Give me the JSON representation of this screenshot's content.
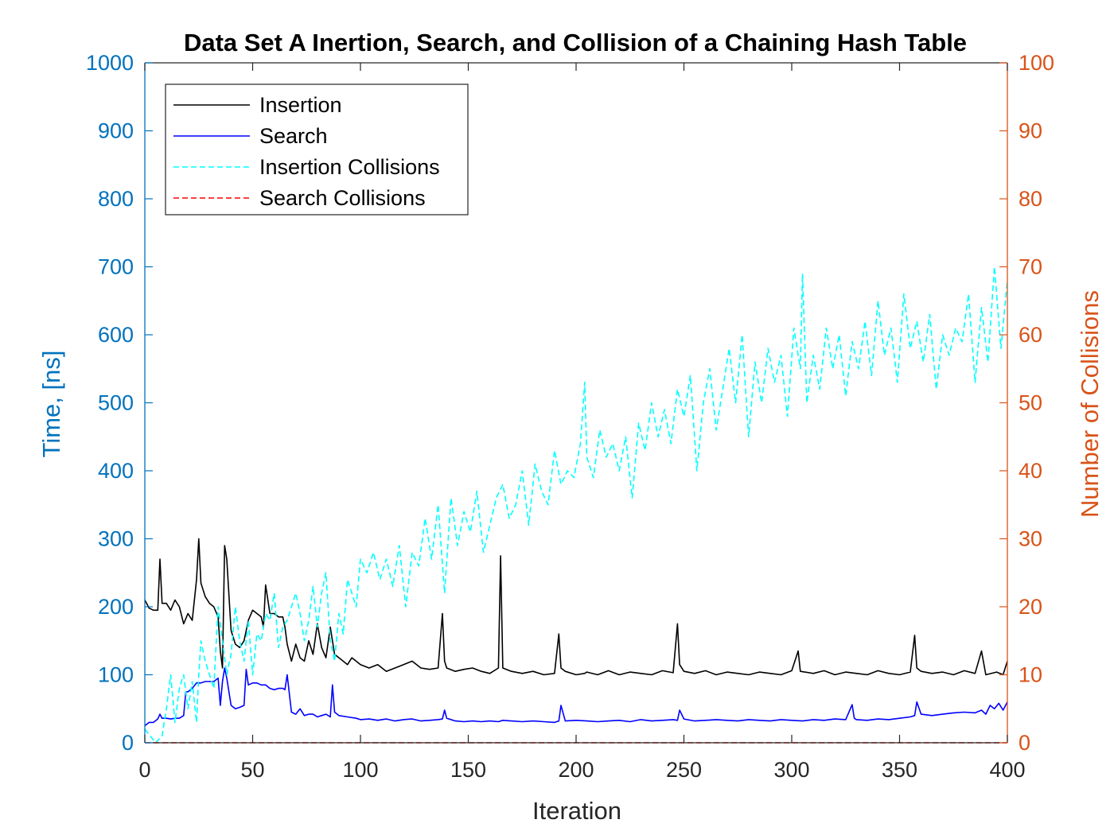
{
  "chart_data": {
    "type": "line",
    "title": "Data Set A Inertion, Search, and Collision of a Chaining Hash Table",
    "xlabel": "Iteration",
    "ylabel_left": "Time, [ns]",
    "ylabel_right": "Number of Collisions",
    "xlim": [
      0,
      400
    ],
    "ylim_left": [
      0,
      1000
    ],
    "ylim_right": [
      0,
      100
    ],
    "x_ticks": [
      0,
      50,
      100,
      150,
      200,
      250,
      300,
      350,
      400
    ],
    "y_left_ticks": [
      0,
      100,
      200,
      300,
      400,
      500,
      600,
      700,
      800,
      900,
      1000
    ],
    "y_right_ticks": [
      0,
      10,
      20,
      30,
      40,
      50,
      60,
      70,
      80,
      90,
      100
    ],
    "grid": false,
    "legend_position": "top-left",
    "colors": {
      "left_axis": "#0072BD",
      "right_axis": "#D95319",
      "axes_text": "#262626"
    },
    "series": [
      {
        "name": "Insertion",
        "axis": "left",
        "color": "#000000",
        "dash": "solid",
        "x": [
          0,
          2,
          4,
          6,
          7,
          8,
          10,
          12,
          14,
          16,
          18,
          20,
          22,
          24,
          25,
          26,
          28,
          30,
          32,
          34,
          35,
          36,
          37,
          38,
          40,
          42,
          44,
          46,
          48,
          50,
          52,
          54,
          55,
          56,
          58,
          60,
          62,
          64,
          65,
          66,
          68,
          70,
          72,
          74,
          76,
          78,
          80,
          82,
          84,
          86,
          88,
          90,
          92,
          94,
          96,
          98,
          100,
          104,
          108,
          112,
          116,
          120,
          124,
          128,
          132,
          136,
          138,
          139,
          140,
          144,
          148,
          152,
          156,
          160,
          164,
          165,
          166,
          170,
          175,
          180,
          185,
          190,
          192,
          193,
          195,
          200,
          204,
          205,
          210,
          215,
          220,
          225,
          230,
          235,
          240,
          245,
          247,
          248,
          250,
          255,
          260,
          265,
          270,
          275,
          280,
          285,
          290,
          295,
          300,
          303,
          304,
          310,
          315,
          320,
          325,
          330,
          335,
          340,
          345,
          350,
          355,
          357,
          358,
          360,
          365,
          370,
          375,
          380,
          385,
          388,
          390,
          395,
          398,
          400
        ],
        "values": [
          210,
          198,
          195,
          195,
          270,
          205,
          205,
          195,
          210,
          200,
          175,
          190,
          180,
          240,
          300,
          235,
          215,
          205,
          200,
          185,
          135,
          110,
          290,
          270,
          165,
          145,
          140,
          150,
          180,
          195,
          190,
          185,
          170,
          232,
          190,
          190,
          185,
          185,
          170,
          145,
          120,
          145,
          125,
          120,
          150,
          130,
          175,
          140,
          125,
          170,
          130,
          125,
          120,
          115,
          125,
          120,
          115,
          110,
          115,
          105,
          110,
          115,
          120,
          110,
          108,
          110,
          190,
          120,
          110,
          105,
          108,
          110,
          105,
          102,
          110,
          275,
          110,
          105,
          102,
          105,
          100,
          102,
          160,
          110,
          105,
          100,
          102,
          104,
          100,
          106,
          100,
          104,
          102,
          100,
          106,
          103,
          175,
          115,
          105,
          102,
          106,
          100,
          104,
          102,
          100,
          104,
          102,
          100,
          106,
          135,
          105,
          102,
          106,
          100,
          104,
          102,
          100,
          106,
          102,
          100,
          104,
          158,
          110,
          105,
          102,
          104,
          100,
          106,
          102,
          135,
          100,
          104,
          100,
          120
        ]
      },
      {
        "name": "Search",
        "axis": "left",
        "color": "#0000FF",
        "dash": "solid",
        "x": [
          0,
          2,
          4,
          6,
          7,
          8,
          10,
          12,
          14,
          16,
          18,
          19,
          20,
          22,
          24,
          26,
          28,
          30,
          32,
          34,
          35,
          36,
          37,
          38,
          40,
          42,
          44,
          46,
          47,
          48,
          50,
          52,
          54,
          56,
          58,
          60,
          62,
          64,
          65,
          66,
          68,
          70,
          72,
          74,
          76,
          78,
          80,
          82,
          84,
          86,
          87,
          88,
          90,
          94,
          98,
          100,
          104,
          108,
          112,
          116,
          120,
          124,
          128,
          132,
          136,
          138,
          139,
          140,
          144,
          148,
          152,
          156,
          160,
          164,
          166,
          170,
          175,
          180,
          185,
          190,
          192,
          193,
          195,
          200,
          205,
          210,
          215,
          220,
          225,
          230,
          235,
          240,
          245,
          247,
          248,
          250,
          255,
          260,
          265,
          270,
          275,
          280,
          285,
          290,
          295,
          300,
          305,
          310,
          315,
          320,
          325,
          328,
          329,
          330,
          335,
          340,
          345,
          350,
          355,
          357,
          358,
          360,
          365,
          370,
          375,
          380,
          385,
          388,
          390,
          392,
          394,
          396,
          398,
          400
        ],
        "values": [
          25,
          30,
          30,
          35,
          42,
          36,
          36,
          35,
          36,
          36,
          40,
          75,
          75,
          80,
          88,
          88,
          90,
          90,
          90,
          95,
          55,
          90,
          110,
          95,
          55,
          50,
          52,
          55,
          108,
          85,
          88,
          88,
          85,
          85,
          80,
          78,
          80,
          80,
          78,
          100,
          45,
          42,
          50,
          40,
          42,
          42,
          38,
          40,
          42,
          38,
          85,
          45,
          40,
          38,
          36,
          34,
          35,
          33,
          35,
          32,
          34,
          35,
          32,
          33,
          34,
          35,
          48,
          36,
          32,
          31,
          32,
          31,
          32,
          31,
          33,
          32,
          31,
          32,
          31,
          30,
          32,
          55,
          32,
          33,
          32,
          31,
          32,
          33,
          31,
          34,
          32,
          33,
          34,
          33,
          48,
          35,
          32,
          33,
          34,
          33,
          32,
          34,
          33,
          32,
          34,
          33,
          32,
          34,
          33,
          35,
          34,
          56,
          36,
          34,
          33,
          35,
          34,
          36,
          38,
          40,
          60,
          42,
          40,
          42,
          44,
          45,
          44,
          48,
          42,
          55,
          50,
          58,
          48,
          60
        ]
      },
      {
        "name": "Insertion Collisions",
        "axis": "right",
        "color": "#00FFFF",
        "dash": "dashed",
        "x": [
          0,
          5,
          8,
          10,
          12,
          14,
          16,
          18,
          20,
          22,
          24,
          25,
          26,
          28,
          30,
          32,
          34,
          36,
          38,
          40,
          42,
          44,
          46,
          48,
          50,
          52,
          54,
          56,
          58,
          60,
          62,
          64,
          66,
          68,
          70,
          72,
          74,
          76,
          78,
          80,
          82,
          84,
          86,
          88,
          90,
          92,
          94,
          96,
          98,
          100,
          103,
          106,
          109,
          112,
          115,
          118,
          121,
          124,
          127,
          130,
          133,
          136,
          139,
          142,
          145,
          148,
          151,
          154,
          157,
          160,
          163,
          166,
          169,
          172,
          175,
          178,
          181,
          184,
          187,
          190,
          193,
          196,
          199,
          202,
          204,
          205,
          208,
          211,
          214,
          217,
          220,
          223,
          226,
          229,
          232,
          235,
          238,
          241,
          244,
          247,
          250,
          253,
          256,
          259,
          262,
          265,
          268,
          271,
          274,
          277,
          280,
          283,
          286,
          289,
          292,
          295,
          298,
          301,
          304,
          305,
          307,
          310,
          313,
          316,
          319,
          322,
          325,
          328,
          331,
          334,
          337,
          340,
          343,
          346,
          349,
          352,
          355,
          358,
          361,
          364,
          367,
          370,
          373,
          376,
          379,
          382,
          385,
          388,
          391,
          394,
          397,
          400
        ],
        "values": [
          2,
          0,
          1,
          5,
          10,
          3,
          8,
          10,
          5,
          9,
          3,
          10,
          15,
          12,
          10,
          8,
          20,
          15,
          10,
          13,
          20,
          15,
          12,
          18,
          10,
          16,
          15,
          19,
          18,
          22,
          14,
          17,
          18,
          20,
          22,
          19,
          15,
          18,
          23,
          17,
          22,
          25,
          15,
          12,
          19,
          16,
          24,
          22,
          20,
          27,
          25,
          28,
          24,
          27,
          23,
          29,
          20,
          28,
          26,
          33,
          27,
          35,
          22,
          36,
          29,
          34,
          31,
          37,
          28,
          32,
          36,
          38,
          33,
          35,
          40,
          32,
          41,
          37,
          35,
          43,
          38,
          40,
          39,
          44,
          53,
          42,
          39,
          46,
          42,
          44,
          40,
          45,
          36,
          47,
          43,
          50,
          45,
          49,
          44,
          52,
          48,
          54,
          40,
          50,
          55,
          46,
          52,
          58,
          50,
          60,
          45,
          56,
          50,
          58,
          53,
          57,
          48,
          61,
          55,
          69,
          50,
          57,
          52,
          61,
          55,
          60,
          51,
          59,
          55,
          62,
          54,
          65,
          57,
          61,
          53,
          66,
          58,
          62,
          56,
          63,
          52,
          60,
          57,
          61,
          59,
          66,
          53,
          64,
          56,
          70,
          58,
          68
        ]
      },
      {
        "name": "Search Collisions",
        "axis": "right",
        "color": "#FF0000",
        "dash": "dashed",
        "x": [
          0,
          400
        ],
        "values": [
          0,
          0
        ]
      }
    ]
  }
}
